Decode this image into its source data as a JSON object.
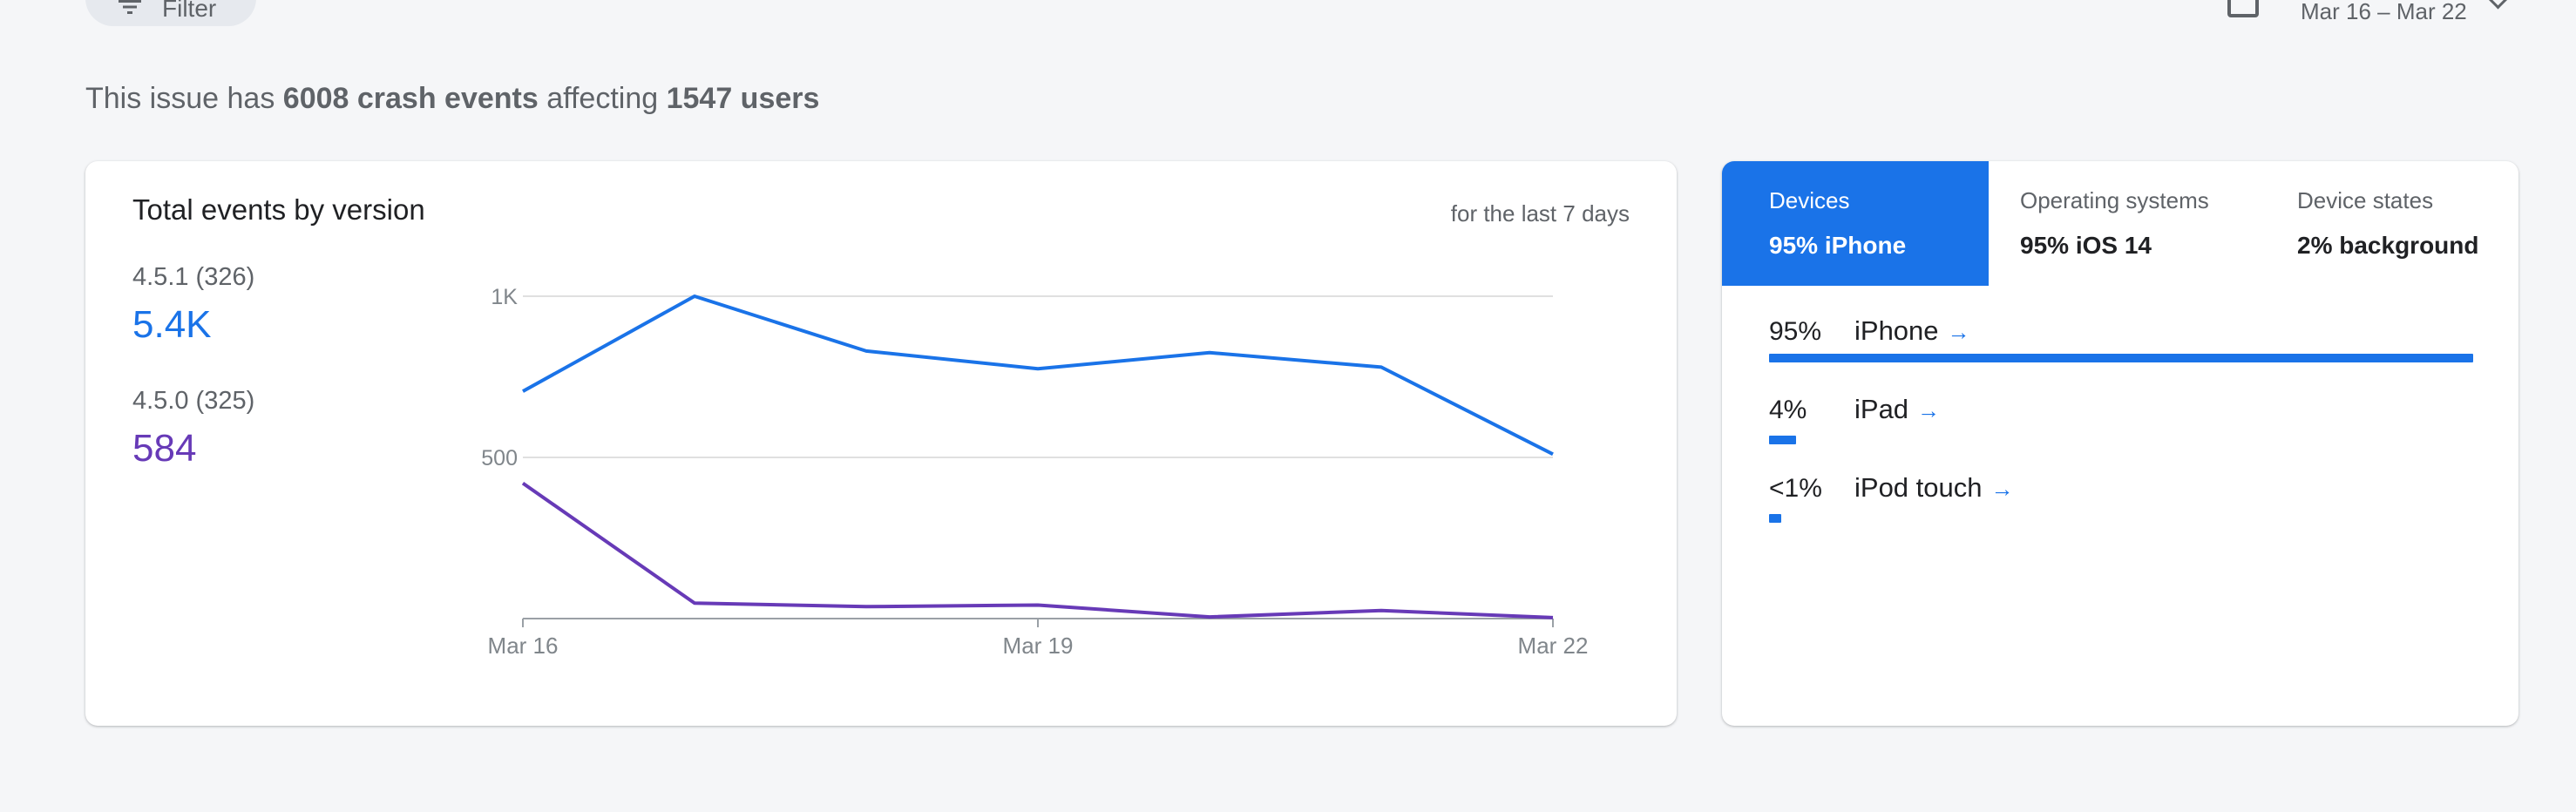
{
  "toolbar": {
    "filter_label": "Filter",
    "date_range": "Mar 16 – Mar 22"
  },
  "summary": {
    "prefix": "This issue has",
    "crash_events": "6008 crash events",
    "middle": "affecting",
    "users": "1547 users"
  },
  "events_card": {
    "title": "Total events by version",
    "subtitle": "for the last 7 days",
    "versions": [
      {
        "label": "4.5.1 (326)",
        "value": "5.4K",
        "color": "#1a73e8"
      },
      {
        "label": "4.5.0 (325)",
        "value": "584",
        "color": "#673ab7"
      }
    ]
  },
  "chart_data": {
    "type": "line",
    "title": "Total events by version",
    "x": [
      "Mar 16",
      "Mar 17",
      "Mar 18",
      "Mar 19",
      "Mar 20",
      "Mar 21",
      "Mar 22"
    ],
    "x_tick_labels": [
      "Mar 16",
      "Mar 19",
      "Mar 22"
    ],
    "y_tick_labels": [
      "1K",
      "500"
    ],
    "ylim": [
      0,
      1000
    ],
    "grid": true,
    "series": [
      {
        "name": "4.5.1 (326)",
        "color": "#1a73e8",
        "values": [
          705,
          1000,
          830,
          775,
          825,
          780,
          510
        ]
      },
      {
        "name": "4.5.0 (325)",
        "color": "#673ab7",
        "values": [
          420,
          48,
          37,
          42,
          5,
          25,
          3
        ]
      }
    ]
  },
  "devices_card": {
    "tabs": [
      {
        "title": "Devices",
        "value": "95% iPhone"
      },
      {
        "title": "Operating systems",
        "value": "95% iOS 14"
      },
      {
        "title": "Device states",
        "value": "2% background"
      }
    ],
    "rows": [
      {
        "pct": "95%",
        "name": "iPhone",
        "fraction": 0.95
      },
      {
        "pct": "4%",
        "name": "iPad",
        "fraction": 0.04
      },
      {
        "pct": "<1%",
        "name": "iPod touch",
        "fraction": 0.01
      }
    ]
  }
}
